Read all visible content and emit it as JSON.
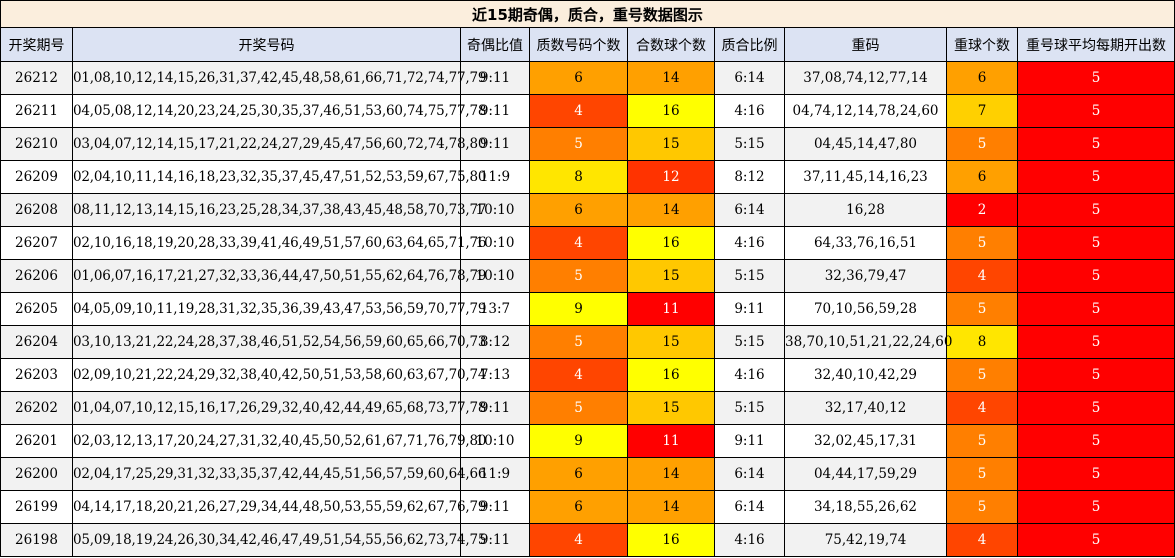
{
  "title": "近15期奇偶，质合，重号数据图示",
  "headers": [
    "开奖期号",
    "开奖号码",
    "奇偶比值",
    "质数号码个数",
    "合数球个数",
    "质合比例",
    "重码",
    "重球个数",
    "重号球平均每期开出数"
  ],
  "colors": {
    "header_bg": "#dce3f3",
    "title_bg": "#fbeedd",
    "row_even": "#f2f2f2",
    "row_odd": "#ffffff",
    "level_2": "#ff0000",
    "level_4": "#ff4500",
    "level_5": "#ff7f00",
    "level_6": "#ffa000",
    "level_7": "#ffd000",
    "level_8": "#ffe600",
    "level_9": "#ffff00",
    "level_11": "#ff0000",
    "level_12": "#ff3300",
    "level_14": "#ffa000",
    "level_15": "#ffc800",
    "level_16": "#ffff00",
    "avg_red": "#ff0000"
  },
  "rows": [
    {
      "period": "26212",
      "numbers": "01,08,10,12,14,15,26,31,37,42,45,48,58,61,66,71,72,74,77,79",
      "odd_even": "9:11",
      "prime": "6",
      "composite": "14",
      "ratio": "6:14",
      "repeat": "37,08,74,12,77,14",
      "repeat_count": "6",
      "avg": "5"
    },
    {
      "period": "26211",
      "numbers": "04,05,08,12,14,20,23,24,25,30,35,37,46,51,53,60,74,75,77,78",
      "odd_even": "9:11",
      "prime": "4",
      "composite": "16",
      "ratio": "4:16",
      "repeat": "04,74,12,14,78,24,60",
      "repeat_count": "7",
      "avg": "5"
    },
    {
      "period": "26210",
      "numbers": "03,04,07,12,14,15,17,21,22,24,27,29,45,47,56,60,72,74,78,80",
      "odd_even": "9:11",
      "prime": "5",
      "composite": "15",
      "ratio": "5:15",
      "repeat": "04,45,14,47,80",
      "repeat_count": "5",
      "avg": "5"
    },
    {
      "period": "26209",
      "numbers": "02,04,10,11,14,16,18,23,32,35,37,45,47,51,52,53,59,67,75,80",
      "odd_even": "11:9",
      "prime": "8",
      "composite": "12",
      "ratio": "8:12",
      "repeat": "37,11,45,14,16,23",
      "repeat_count": "6",
      "avg": "5"
    },
    {
      "period": "26208",
      "numbers": "08,11,12,13,14,15,16,23,25,28,34,37,38,43,45,48,58,70,73,77",
      "odd_even": "10:10",
      "prime": "6",
      "composite": "14",
      "ratio": "6:14",
      "repeat": "16,28",
      "repeat_count": "2",
      "avg": "5"
    },
    {
      "period": "26207",
      "numbers": "02,10,16,18,19,20,28,33,39,41,46,49,51,57,60,63,64,65,71,76",
      "odd_even": "10:10",
      "prime": "4",
      "composite": "16",
      "ratio": "4:16",
      "repeat": "64,33,76,16,51",
      "repeat_count": "5",
      "avg": "5"
    },
    {
      "period": "26206",
      "numbers": "01,06,07,16,17,21,27,32,33,36,44,47,50,51,55,62,64,76,78,79",
      "odd_even": "10:10",
      "prime": "5",
      "composite": "15",
      "ratio": "5:15",
      "repeat": "32,36,79,47",
      "repeat_count": "4",
      "avg": "5"
    },
    {
      "period": "26205",
      "numbers": "04,05,09,10,11,19,28,31,32,35,36,39,43,47,53,56,59,70,77,79",
      "odd_even": "13:7",
      "prime": "9",
      "composite": "11",
      "ratio": "9:11",
      "repeat": "70,10,56,59,28",
      "repeat_count": "5",
      "avg": "5"
    },
    {
      "period": "26204",
      "numbers": "03,10,13,21,22,24,28,37,38,46,51,52,54,56,59,60,65,66,70,73",
      "odd_even": "8:12",
      "prime": "5",
      "composite": "15",
      "ratio": "5:15",
      "repeat": "38,70,10,51,21,22,24,60",
      "repeat_count": "8",
      "avg": "5"
    },
    {
      "period": "26203",
      "numbers": "02,09,10,21,22,24,29,32,38,40,42,50,51,53,58,60,63,67,70,74",
      "odd_even": "7:13",
      "prime": "4",
      "composite": "16",
      "ratio": "4:16",
      "repeat": "32,40,10,42,29",
      "repeat_count": "5",
      "avg": "5"
    },
    {
      "period": "26202",
      "numbers": "01,04,07,10,12,15,16,17,26,29,32,40,42,44,49,65,68,73,77,78",
      "odd_even": "9:11",
      "prime": "5",
      "composite": "15",
      "ratio": "5:15",
      "repeat": "32,17,40,12",
      "repeat_count": "4",
      "avg": "5"
    },
    {
      "period": "26201",
      "numbers": "02,03,12,13,17,20,24,27,31,32,40,45,50,52,61,67,71,76,79,80",
      "odd_even": "10:10",
      "prime": "9",
      "composite": "11",
      "ratio": "9:11",
      "repeat": "32,02,45,17,31",
      "repeat_count": "5",
      "avg": "5"
    },
    {
      "period": "26200",
      "numbers": "02,04,17,25,29,31,32,33,35,37,42,44,45,51,56,57,59,60,64,66",
      "odd_even": "11:9",
      "prime": "6",
      "composite": "14",
      "ratio": "6:14",
      "repeat": "04,44,17,59,29",
      "repeat_count": "5",
      "avg": "5"
    },
    {
      "period": "26199",
      "numbers": "04,14,17,18,20,21,26,27,29,34,44,48,50,53,55,59,62,67,76,79",
      "odd_even": "9:11",
      "prime": "6",
      "composite": "14",
      "ratio": "6:14",
      "repeat": "34,18,55,26,62",
      "repeat_count": "5",
      "avg": "5"
    },
    {
      "period": "26198",
      "numbers": "05,09,18,19,24,26,30,34,42,46,47,49,51,54,55,56,62,73,74,75",
      "odd_even": "9:11",
      "prime": "4",
      "composite": "16",
      "ratio": "4:16",
      "repeat": "75,42,19,74",
      "repeat_count": "4",
      "avg": "5"
    }
  ]
}
